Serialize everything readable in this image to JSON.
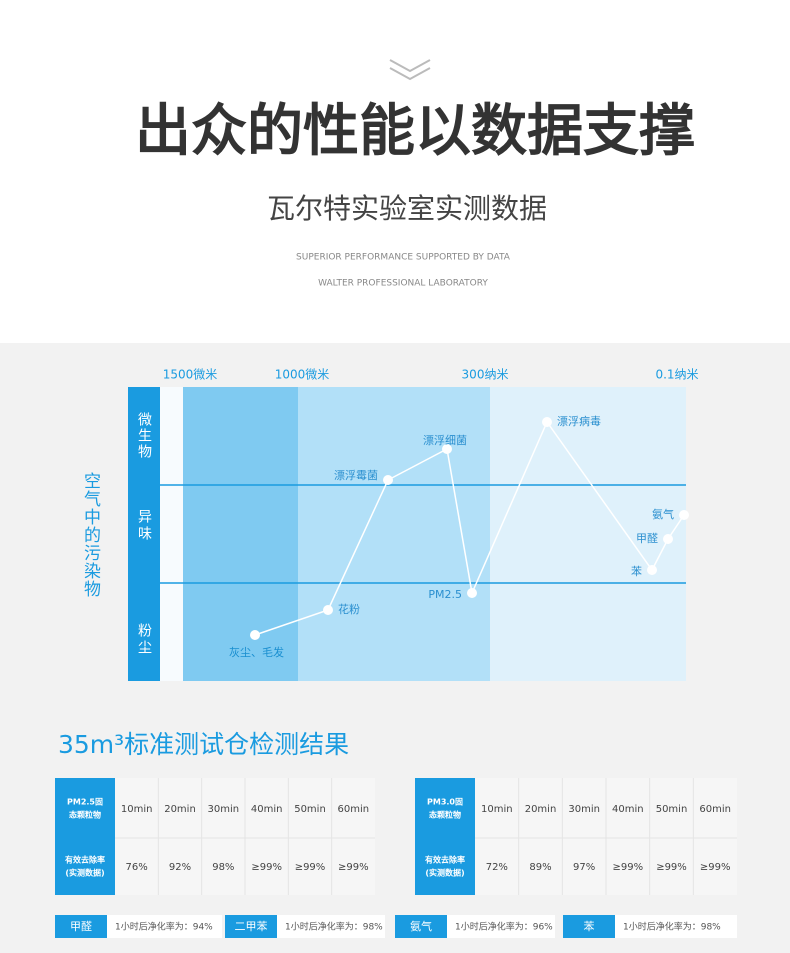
{
  "header": {
    "title": "出众的性能以数据支撑",
    "subtitle": "瓦尔特实验室实测数据",
    "en_lines": [
      "SUPERIOR PERFORMANCE SUPPORTED BY DATA",
      "WALTER PROFESSIONAL LABORATORY"
    ]
  },
  "diagram": {
    "side_label": "空气中的污染物",
    "size_labels": [
      "1500微米",
      "1000微米",
      "300纳米",
      "0.1纳米"
    ],
    "row_labels": [
      "微生物",
      "异味",
      "粉尘"
    ],
    "points": [
      "灰尘、毛发",
      "花粉",
      "漂浮霉菌",
      "漂浮细菌",
      "PM2.5",
      "漂浮病毒",
      "苯",
      "甲醛",
      "氨气"
    ]
  },
  "results": {
    "title": "35m³标准测试仓检测结果",
    "tables": [
      {
        "header_label": [
          "PM2.5固",
          "态颗粒物"
        ],
        "times": [
          "10min",
          "20min",
          "30min",
          "40min",
          "50min",
          "60min"
        ],
        "rate_label": [
          "有效去除率",
          "(实测数据)"
        ],
        "rates": [
          "76%",
          "92%",
          "98%",
          "≥99%",
          "≥99%",
          "≥99%"
        ]
      },
      {
        "header_label": [
          "PM3.0固",
          "态颗粒物"
        ],
        "times": [
          "10min",
          "20min",
          "30min",
          "40min",
          "50min",
          "60min"
        ],
        "rate_label": [
          "有效去除率",
          "(实测数据)"
        ],
        "rates": [
          "72%",
          "89%",
          "97%",
          "≥99%",
          "≥99%",
          "≥99%"
        ]
      }
    ],
    "notes": [
      {
        "name": "甲醛",
        "text": "1小时后净化率为：94%"
      },
      {
        "name": "二甲苯",
        "text": "1小时后净化率为：98%"
      },
      {
        "name": "氨气",
        "text": "1小时后净化率为：96%"
      },
      {
        "name": "苯",
        "text": "1小时后净化率为：98%"
      }
    ]
  }
}
